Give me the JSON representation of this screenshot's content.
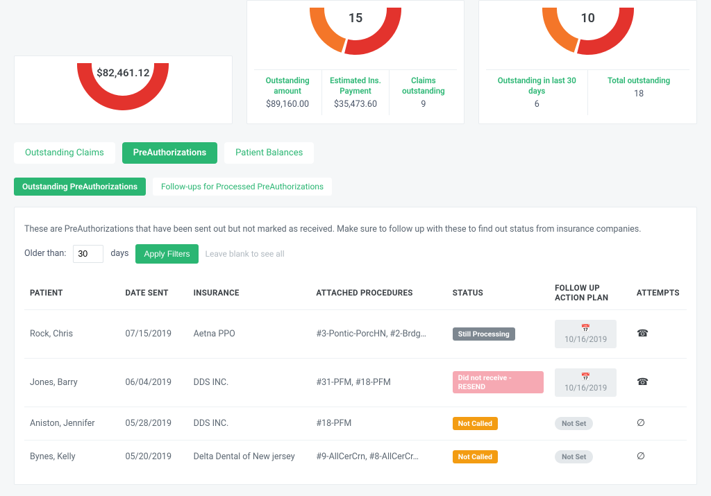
{
  "colors": {
    "accent": "#2bb673",
    "donut_red": "#e3332d",
    "donut_orange": "#f47629",
    "donut_blue": "#3071a9",
    "donut_yellow": "#f1c40f",
    "card_bg": "#ffffff",
    "page_bg": "#f5f7f8",
    "border": "#e8ecef",
    "text": "#4a5568"
  },
  "cards": {
    "a": {
      "center_value": "$82,461.12",
      "donut": {
        "type": "donut",
        "inner_radius": 45,
        "outer_radius": 66,
        "segments": [
          {
            "color": "#e3332d",
            "fraction": 0.93
          },
          {
            "color": "#f47629",
            "fraction": 0.02
          },
          {
            "color": "#3071a9",
            "fraction": 0.015
          },
          {
            "color": "#f1c40f",
            "fraction": 0.015
          },
          {
            "color": "#8d3aa3",
            "fraction": 0.02
          }
        ]
      }
    },
    "b": {
      "center_value": "15",
      "donut": {
        "type": "donut",
        "inner_radius": 45,
        "outer_radius": 66,
        "segments": [
          {
            "color": "#e3332d",
            "fraction": 0.55
          },
          {
            "color": "#f47629",
            "fraction": 0.45
          }
        ],
        "gap_deg": 4
      },
      "metrics": [
        {
          "label": "Outstanding amount",
          "value": "$89,160.00"
        },
        {
          "label": "Estimated Ins. Payment",
          "value": "$35,473.60"
        },
        {
          "label": "Claims outstanding",
          "value": "9"
        }
      ]
    },
    "c": {
      "center_value": "10",
      "donut": {
        "type": "donut",
        "inner_radius": 45,
        "outer_radius": 66,
        "segments": [
          {
            "color": "#e3332d",
            "fraction": 0.55
          },
          {
            "color": "#f47629",
            "fraction": 0.45
          }
        ],
        "gap_deg": 4
      },
      "metrics": [
        {
          "label": "Outstanding in last 30 days",
          "value": "6"
        },
        {
          "label": "Total outstanding",
          "value": "18"
        }
      ]
    }
  },
  "tabs": {
    "items": [
      {
        "label": "Outstanding Claims",
        "active": false
      },
      {
        "label": "PreAuthorizations",
        "active": true
      },
      {
        "label": "Patient Balances",
        "active": false
      }
    ]
  },
  "subtabs": {
    "items": [
      {
        "label": "Outstanding PreAuthorizations",
        "active": true
      },
      {
        "label": "Follow-ups for Processed PreAuthorizations",
        "active": false
      }
    ]
  },
  "info_text": "These are PreAuthorizations that have been sent out but not marked as received. Make sure to follow up with these to find out status from insurance companies.",
  "filter": {
    "older_label": "Older than:",
    "value": "30",
    "days_label": "days",
    "apply_label": "Apply Filters",
    "hint": "Leave blank to see all"
  },
  "table": {
    "columns": [
      "PATIENT",
      "DATE SENT",
      "INSURANCE",
      "ATTACHED PROCEDURES",
      "STATUS",
      "FOLLOW UP ACTION PLAN",
      "ATTEMPTS"
    ],
    "rows": [
      {
        "patient": "Rock, Chris",
        "date": "07/15/2019",
        "insurance": "Aetna PPO",
        "procedures": "#3-Pontic-PorcHN, #2-Brdg…",
        "status": {
          "text": "Still Processing",
          "kind": "gray"
        },
        "plan": {
          "type": "date",
          "value": "10/16/2019"
        },
        "attempts": "phone"
      },
      {
        "patient": "Jones, Barry",
        "date": "06/04/2019",
        "insurance": "DDS INC.",
        "procedures": "#31-PFM, #18-PFM",
        "status": {
          "text": "Did not receive - RESEND",
          "kind": "pink"
        },
        "plan": {
          "type": "date",
          "value": "10/16/2019"
        },
        "attempts": "phone"
      },
      {
        "patient": "Aniston, Jennifer",
        "date": "05/28/2019",
        "insurance": "DDS INC.",
        "procedures": "#18-PFM",
        "status": {
          "text": "Not Called",
          "kind": "orange"
        },
        "plan": {
          "type": "notset",
          "value": "Not Set"
        },
        "attempts": "ban"
      },
      {
        "patient": "Bynes, Kelly",
        "date": "05/20/2019",
        "insurance": "Delta Dental of New jersey",
        "procedures": "#9-AllCerCrn, #8-AllCerCr…",
        "status": {
          "text": "Not Called",
          "kind": "orange"
        },
        "plan": {
          "type": "notset",
          "value": "Not Set"
        },
        "attempts": "ban"
      }
    ]
  }
}
